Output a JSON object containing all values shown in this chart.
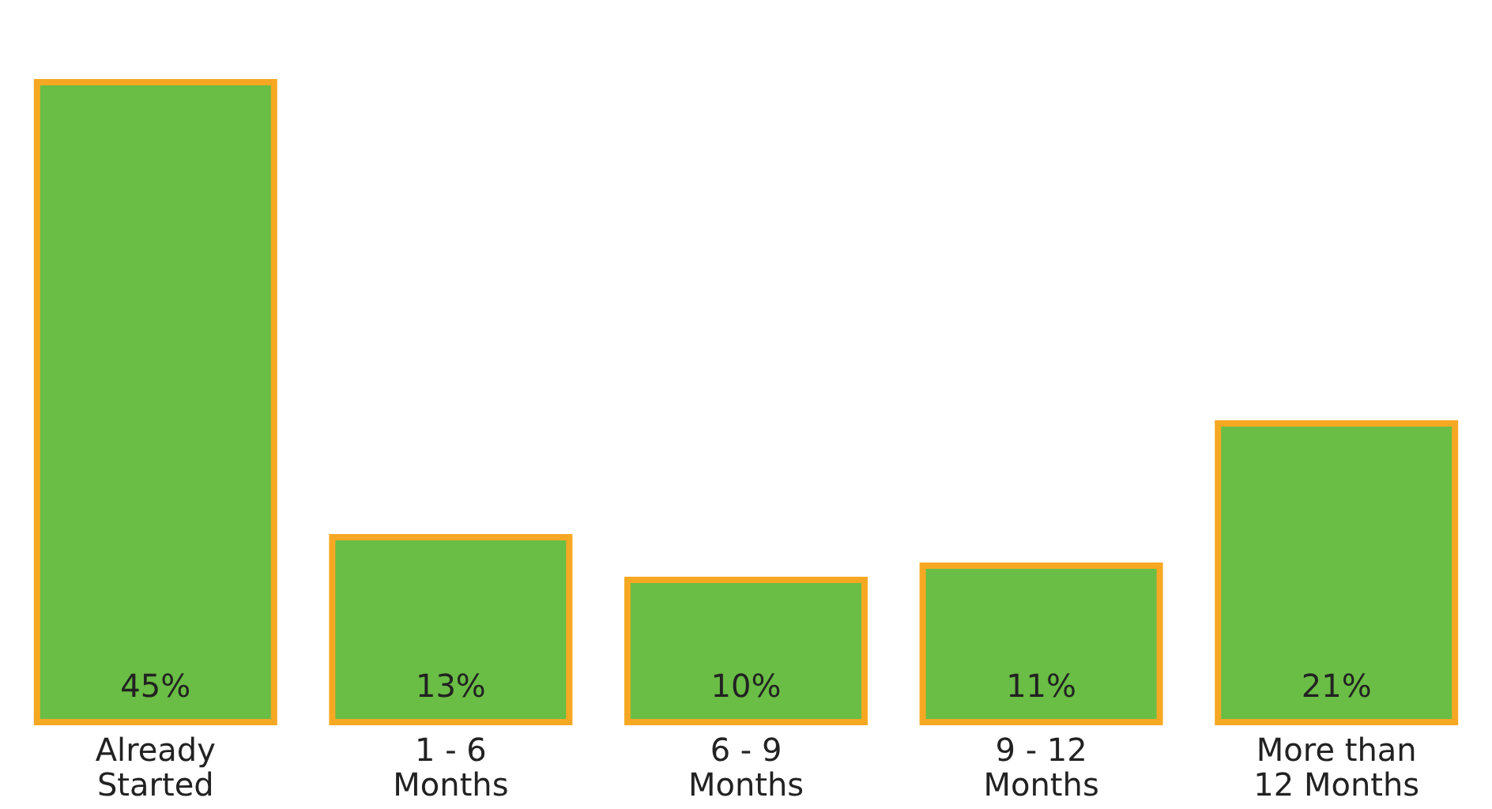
{
  "chart_data": {
    "type": "bar",
    "categories": [
      "Already\nStarted",
      "1 - 6\nMonths",
      "6 - 9\nMonths",
      "9 - 12\nMonths",
      "More than\n12 Months"
    ],
    "values": [
      45,
      13,
      10,
      11,
      21
    ],
    "value_labels": [
      "45%",
      "13%",
      "10%",
      "11%",
      "21%"
    ],
    "color": "#6abd45",
    "grid": false
  }
}
